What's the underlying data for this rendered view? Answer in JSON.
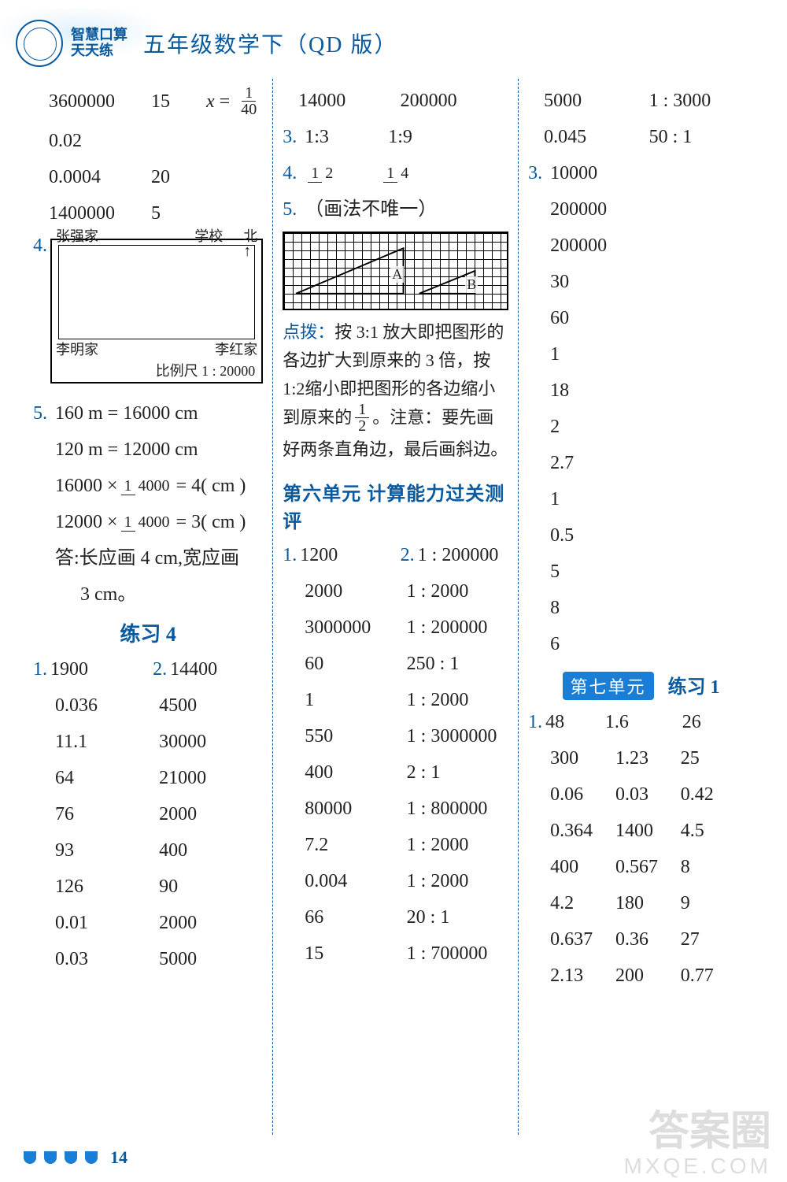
{
  "header": {
    "badge_line1": "智慧口算",
    "badge_line2": "天天练",
    "title": "五年级数学下（QD 版）"
  },
  "colors": {
    "accent": "#0a5aa0",
    "badge_bg": "#1b7ed6",
    "text": "#222222",
    "grid_line": "#000000"
  },
  "col1": {
    "top_rows": [
      [
        "3600000",
        "15",
        "x_eq_1_40"
      ],
      [
        "0.02",
        "",
        ""
      ],
      [
        "0.0004",
        "20",
        ""
      ],
      [
        "1400000",
        "5",
        ""
      ]
    ],
    "q4_num": "4.",
    "map": {
      "tl": "张强家",
      "tr": "学校",
      "north": "北",
      "arrow": "↑",
      "bl": "李明家",
      "br": "李红家",
      "scale": "比例尺 1 : 20000"
    },
    "q5_num": "5.",
    "q5_lines": [
      "160 m = 16000 cm",
      "120 m = 12000 cm"
    ],
    "q5_calc": [
      {
        "a": "16000 ×",
        "frac_top": "1",
        "frac_bot": "4000",
        "b": "= 4( cm )"
      },
      {
        "a": "12000 ×",
        "frac_top": "1",
        "frac_bot": "4000",
        "b": "= 3( cm )"
      }
    ],
    "q5_ans1": "答:长应画 4 cm,宽应画",
    "q5_ans2": "3 cm。",
    "practice4": "练习 4",
    "p4_q1": "1.",
    "p4_q1v": "1900",
    "p4_q2": "2.",
    "p4_q2v": "14400",
    "p4_rows": [
      [
        "0.036",
        "4500"
      ],
      [
        "11.1",
        "30000"
      ],
      [
        "64",
        "21000"
      ],
      [
        "76",
        "2000"
      ],
      [
        "93",
        "400"
      ],
      [
        "126",
        "90"
      ],
      [
        "0.01",
        "2000"
      ],
      [
        "0.03",
        "5000"
      ]
    ]
  },
  "col2": {
    "top_row": [
      "14000",
      "200000"
    ],
    "q3_num": "3.",
    "q3_vals": [
      "1:3",
      "1:9"
    ],
    "q4_num": "4.",
    "q4_fracs": [
      {
        "t": "1",
        "b": "2"
      },
      {
        "t": "1",
        "b": "4"
      }
    ],
    "q5_num": "5.",
    "q5_text": "（画法不唯一）",
    "grid_labels": {
      "A": "A",
      "B": "B"
    },
    "hint_head": "点拨：",
    "hint_body_1": "按 3:1 放大即把图形的各边扩大到原来的 3 倍，按 1:2缩小即把图形的各边缩小到原来的",
    "hint_frac": {
      "t": "1",
      "b": "2"
    },
    "hint_body_2": "。注意：要先画好两条直角边，最后画斜边。",
    "unit6_title": "第六单元 计算能力过关测评",
    "u6_r1": {
      "n1": "1.",
      "v1": "1200",
      "n2": "2.",
      "v2": "1 : 200000"
    },
    "u6_rows": [
      [
        "2000",
        "1 : 2000"
      ],
      [
        "3000000",
        "1 : 200000"
      ],
      [
        "60",
        "250 : 1"
      ],
      [
        "1",
        "1 : 2000"
      ],
      [
        "550",
        "1 : 3000000"
      ],
      [
        "400",
        "2 : 1"
      ],
      [
        "80000",
        "1 : 800000"
      ],
      [
        "7.2",
        "1 : 2000"
      ],
      [
        "0.004",
        "1 : 2000"
      ],
      [
        "66",
        "20 : 1"
      ],
      [
        "15",
        "1 : 700000"
      ]
    ]
  },
  "col3": {
    "top_rows": [
      [
        "5000",
        "1 : 3000"
      ],
      [
        "0.045",
        "50 : 1"
      ]
    ],
    "q3_num": "3.",
    "q3_vals": [
      "10000",
      "200000",
      "200000",
      "30",
      "60",
      "1",
      "18",
      "2",
      "2.7",
      "1",
      "0.5",
      "5",
      "8",
      "6"
    ],
    "unit7_badge": "第七单元",
    "unit7_prac": "练习 1",
    "u7_q1": "1.",
    "u7_first_row": [
      "48",
      "1.6",
      "26"
    ],
    "u7_rows": [
      [
        "300",
        "1.23",
        "25"
      ],
      [
        "0.06",
        "0.03",
        "0.42"
      ],
      [
        "0.364",
        "1400",
        "4.5"
      ],
      [
        "400",
        "0.567",
        "8"
      ],
      [
        "4.2",
        "180",
        "9"
      ],
      [
        "0.637",
        "0.36",
        "27"
      ],
      [
        "2.13",
        "200",
        "0.77"
      ]
    ]
  },
  "footer": {
    "page": "14"
  },
  "watermark": {
    "l1": "答案圈",
    "l2": "MXQE.COM"
  }
}
